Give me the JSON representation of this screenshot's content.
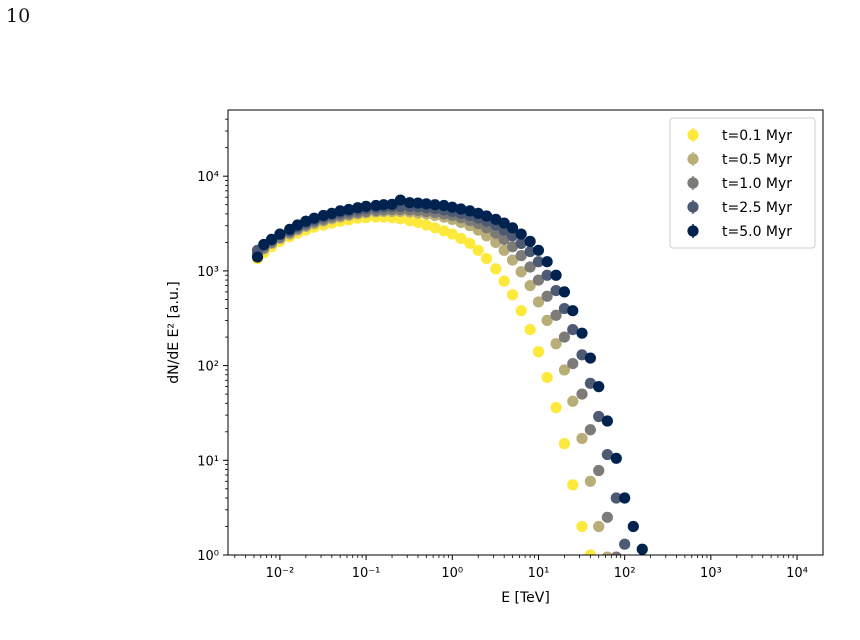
{
  "page": {
    "number": "10",
    "caption_fragment": ""
  },
  "chart_data": {
    "type": "scatter",
    "title": "",
    "xlabel": "E [TeV]",
    "ylabel": "dN/dE E² [a.u.]",
    "xscale": "log",
    "yscale": "log",
    "xlim": [
      0.0025,
      20000
    ],
    "ylim": [
      1,
      50000
    ],
    "x_ticks": [
      0.01,
      0.1,
      1,
      10,
      100,
      1000,
      10000
    ],
    "x_tick_labels": [
      "10⁻²",
      "10⁻¹",
      "10⁰",
      "10¹",
      "10²",
      "10³",
      "10⁴"
    ],
    "y_ticks": [
      1,
      10,
      100,
      1000,
      10000
    ],
    "y_tick_labels": [
      "10⁰",
      "10¹",
      "10²",
      "10³",
      "10⁴"
    ],
    "grid": false,
    "legend_position": "top-right",
    "marker": "circle with error bars",
    "series": [
      {
        "name": "t=0.1 Myr",
        "color": "#fde93b",
        "points": [
          [
            0.0055,
            1350
          ],
          [
            0.0065,
            1550
          ],
          [
            0.008,
            1800
          ],
          [
            0.01,
            2050
          ],
          [
            0.013,
            2300
          ],
          [
            0.016,
            2500
          ],
          [
            0.02,
            2700
          ],
          [
            0.025,
            2900
          ],
          [
            0.032,
            3050
          ],
          [
            0.04,
            3200
          ],
          [
            0.05,
            3350
          ],
          [
            0.063,
            3450
          ],
          [
            0.08,
            3600
          ],
          [
            0.1,
            3650
          ],
          [
            0.13,
            3700
          ],
          [
            0.16,
            3700
          ],
          [
            0.2,
            3650
          ],
          [
            0.25,
            3550
          ],
          [
            0.32,
            3400
          ],
          [
            0.4,
            3250
          ],
          [
            0.5,
            3050
          ],
          [
            0.63,
            2850
          ],
          [
            0.8,
            2650
          ],
          [
            1.0,
            2450
          ],
          [
            1.26,
            2200
          ],
          [
            1.6,
            1950
          ],
          [
            2.0,
            1650
          ],
          [
            2.5,
            1350
          ],
          [
            3.2,
            1050
          ],
          [
            4.0,
            780
          ],
          [
            5.0,
            560
          ],
          [
            6.3,
            380
          ],
          [
            8.0,
            240
          ],
          [
            10,
            140
          ],
          [
            12.6,
            75
          ],
          [
            16,
            36
          ],
          [
            20,
            15
          ],
          [
            25,
            5.5
          ],
          [
            32,
            2
          ],
          [
            40,
            1.0
          ]
        ]
      },
      {
        "name": "t=0.5 Myr",
        "color": "#b9ad78",
        "points": [
          [
            0.0055,
            1500
          ],
          [
            0.0065,
            1700
          ],
          [
            0.008,
            1950
          ],
          [
            0.01,
            2200
          ],
          [
            0.013,
            2450
          ],
          [
            0.016,
            2700
          ],
          [
            0.02,
            2950
          ],
          [
            0.025,
            3150
          ],
          [
            0.032,
            3350
          ],
          [
            0.04,
            3550
          ],
          [
            0.05,
            3700
          ],
          [
            0.063,
            3850
          ],
          [
            0.08,
            4000
          ],
          [
            0.1,
            4100
          ],
          [
            0.13,
            4200
          ],
          [
            0.16,
            4250
          ],
          [
            0.2,
            4250
          ],
          [
            0.25,
            4250
          ],
          [
            0.32,
            4200
          ],
          [
            0.4,
            4100
          ],
          [
            0.5,
            4000
          ],
          [
            0.63,
            3850
          ],
          [
            0.8,
            3700
          ],
          [
            1.0,
            3500
          ],
          [
            1.26,
            3250
          ],
          [
            1.6,
            3000
          ],
          [
            2.0,
            2700
          ],
          [
            2.5,
            2350
          ],
          [
            3.2,
            2000
          ],
          [
            4.0,
            1650
          ],
          [
            5.0,
            1300
          ],
          [
            6.3,
            980
          ],
          [
            8.0,
            700
          ],
          [
            10,
            470
          ],
          [
            12.6,
            300
          ],
          [
            16,
            170
          ],
          [
            20,
            90
          ],
          [
            25,
            42
          ],
          [
            32,
            17
          ],
          [
            40,
            6
          ],
          [
            50,
            2
          ],
          [
            63,
            0.95
          ]
        ]
      },
      {
        "name": "t=1.0 Myr",
        "color": "#7c7b78",
        "points": [
          [
            0.0055,
            1550
          ],
          [
            0.0065,
            1750
          ],
          [
            0.008,
            2000
          ],
          [
            0.01,
            2250
          ],
          [
            0.013,
            2550
          ],
          [
            0.016,
            2800
          ],
          [
            0.02,
            3050
          ],
          [
            0.025,
            3300
          ],
          [
            0.032,
            3500
          ],
          [
            0.04,
            3700
          ],
          [
            0.05,
            3850
          ],
          [
            0.063,
            4000
          ],
          [
            0.08,
            4150
          ],
          [
            0.1,
            4250
          ],
          [
            0.13,
            4350
          ],
          [
            0.16,
            4400
          ],
          [
            0.2,
            4450
          ],
          [
            0.25,
            4450
          ],
          [
            0.32,
            4400
          ],
          [
            0.4,
            4350
          ],
          [
            0.5,
            4250
          ],
          [
            0.63,
            4150
          ],
          [
            0.8,
            4000
          ],
          [
            1.0,
            3850
          ],
          [
            1.26,
            3650
          ],
          [
            1.6,
            3400
          ],
          [
            2.0,
            3150
          ],
          [
            2.5,
            2850
          ],
          [
            3.2,
            2500
          ],
          [
            4.0,
            2150
          ],
          [
            5.0,
            1800
          ],
          [
            6.3,
            1450
          ],
          [
            8.0,
            1100
          ],
          [
            10,
            800
          ],
          [
            12.6,
            540
          ],
          [
            16,
            340
          ],
          [
            20,
            200
          ],
          [
            25,
            105
          ],
          [
            32,
            50
          ],
          [
            40,
            21
          ],
          [
            50,
            7.8
          ],
          [
            63,
            2.5
          ],
          [
            80,
            0.95
          ]
        ]
      },
      {
        "name": "t=2.5 Myr",
        "color": "#4d5a74",
        "points": [
          [
            0.0055,
            1650
          ],
          [
            0.0065,
            1850
          ],
          [
            0.008,
            2100
          ],
          [
            0.01,
            2400
          ],
          [
            0.013,
            2650
          ],
          [
            0.016,
            2950
          ],
          [
            0.02,
            3200
          ],
          [
            0.025,
            3450
          ],
          [
            0.032,
            3700
          ],
          [
            0.04,
            3900
          ],
          [
            0.05,
            4100
          ],
          [
            0.063,
            4250
          ],
          [
            0.08,
            4400
          ],
          [
            0.1,
            4550
          ],
          [
            0.13,
            4650
          ],
          [
            0.16,
            4750
          ],
          [
            0.2,
            4800
          ],
          [
            0.25,
            4800
          ],
          [
            0.32,
            4800
          ],
          [
            0.4,
            4750
          ],
          [
            0.5,
            4650
          ],
          [
            0.63,
            4550
          ],
          [
            0.8,
            4400
          ],
          [
            1.0,
            4250
          ],
          [
            1.26,
            4050
          ],
          [
            1.6,
            3850
          ],
          [
            2.0,
            3600
          ],
          [
            2.5,
            3350
          ],
          [
            3.2,
            3050
          ],
          [
            4.0,
            2700
          ],
          [
            5.0,
            2350
          ],
          [
            6.3,
            1950
          ],
          [
            8.0,
            1600
          ],
          [
            10,
            1250
          ],
          [
            12.6,
            900
          ],
          [
            16,
            620
          ],
          [
            20,
            400
          ],
          [
            25,
            240
          ],
          [
            32,
            130
          ],
          [
            40,
            65
          ],
          [
            50,
            29
          ],
          [
            63,
            11.5
          ],
          [
            80,
            4
          ],
          [
            100,
            1.3
          ]
        ]
      },
      {
        "name": "t=5.0 Myr",
        "color": "#00224e",
        "points": [
          [
            0.0055,
            1400
          ],
          [
            0.0065,
            1900
          ],
          [
            0.008,
            2150
          ],
          [
            0.01,
            2450
          ],
          [
            0.013,
            2750
          ],
          [
            0.016,
            3050
          ],
          [
            0.02,
            3350
          ],
          [
            0.025,
            3600
          ],
          [
            0.032,
            3850
          ],
          [
            0.04,
            4050
          ],
          [
            0.05,
            4300
          ],
          [
            0.063,
            4450
          ],
          [
            0.08,
            4650
          ],
          [
            0.1,
            4800
          ],
          [
            0.13,
            4900
          ],
          [
            0.16,
            5000
          ],
          [
            0.2,
            5050
          ],
          [
            0.25,
            5600
          ],
          [
            0.32,
            5250
          ],
          [
            0.4,
            5200
          ],
          [
            0.5,
            5100
          ],
          [
            0.63,
            5000
          ],
          [
            0.8,
            4900
          ],
          [
            1.0,
            4700
          ],
          [
            1.26,
            4500
          ],
          [
            1.6,
            4300
          ],
          [
            2.0,
            4050
          ],
          [
            2.5,
            3800
          ],
          [
            3.2,
            3500
          ],
          [
            4.0,
            3200
          ],
          [
            5.0,
            2850
          ],
          [
            6.3,
            2450
          ],
          [
            8.0,
            2050
          ],
          [
            10,
            1650
          ],
          [
            12.6,
            1250
          ],
          [
            16,
            900
          ],
          [
            20,
            600
          ],
          [
            25,
            380
          ],
          [
            32,
            220
          ],
          [
            40,
            120
          ],
          [
            50,
            60
          ],
          [
            63,
            26
          ],
          [
            80,
            10.5
          ],
          [
            100,
            4
          ],
          [
            126,
            2
          ],
          [
            160,
            1.15
          ]
        ]
      }
    ]
  }
}
